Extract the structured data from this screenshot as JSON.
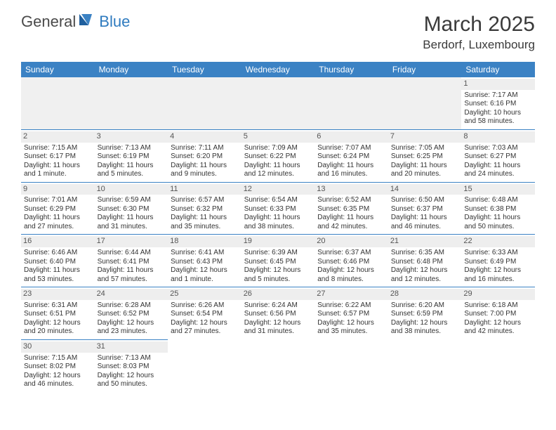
{
  "logo": {
    "text1": "General",
    "text2": "Blue"
  },
  "title": "March 2025",
  "location": "Berdorf, Luxembourg",
  "colors": {
    "header_bg": "#3b82c4",
    "header_fg": "#ffffff",
    "daynum_bg": "#eeeeee",
    "border": "#3b82c4",
    "logo_gray": "#4a4a4a",
    "logo_blue": "#2f7bbf"
  },
  "day_headers": [
    "Sunday",
    "Monday",
    "Tuesday",
    "Wednesday",
    "Thursday",
    "Friday",
    "Saturday"
  ],
  "weeks": [
    [
      null,
      null,
      null,
      null,
      null,
      null,
      {
        "n": "1",
        "sr": "Sunrise: 7:17 AM",
        "ss": "Sunset: 6:16 PM",
        "d1": "Daylight: 10 hours",
        "d2": "and 58 minutes."
      }
    ],
    [
      {
        "n": "2",
        "sr": "Sunrise: 7:15 AM",
        "ss": "Sunset: 6:17 PM",
        "d1": "Daylight: 11 hours",
        "d2": "and 1 minute."
      },
      {
        "n": "3",
        "sr": "Sunrise: 7:13 AM",
        "ss": "Sunset: 6:19 PM",
        "d1": "Daylight: 11 hours",
        "d2": "and 5 minutes."
      },
      {
        "n": "4",
        "sr": "Sunrise: 7:11 AM",
        "ss": "Sunset: 6:20 PM",
        "d1": "Daylight: 11 hours",
        "d2": "and 9 minutes."
      },
      {
        "n": "5",
        "sr": "Sunrise: 7:09 AM",
        "ss": "Sunset: 6:22 PM",
        "d1": "Daylight: 11 hours",
        "d2": "and 12 minutes."
      },
      {
        "n": "6",
        "sr": "Sunrise: 7:07 AM",
        "ss": "Sunset: 6:24 PM",
        "d1": "Daylight: 11 hours",
        "d2": "and 16 minutes."
      },
      {
        "n": "7",
        "sr": "Sunrise: 7:05 AM",
        "ss": "Sunset: 6:25 PM",
        "d1": "Daylight: 11 hours",
        "d2": "and 20 minutes."
      },
      {
        "n": "8",
        "sr": "Sunrise: 7:03 AM",
        "ss": "Sunset: 6:27 PM",
        "d1": "Daylight: 11 hours",
        "d2": "and 24 minutes."
      }
    ],
    [
      {
        "n": "9",
        "sr": "Sunrise: 7:01 AM",
        "ss": "Sunset: 6:29 PM",
        "d1": "Daylight: 11 hours",
        "d2": "and 27 minutes."
      },
      {
        "n": "10",
        "sr": "Sunrise: 6:59 AM",
        "ss": "Sunset: 6:30 PM",
        "d1": "Daylight: 11 hours",
        "d2": "and 31 minutes."
      },
      {
        "n": "11",
        "sr": "Sunrise: 6:57 AM",
        "ss": "Sunset: 6:32 PM",
        "d1": "Daylight: 11 hours",
        "d2": "and 35 minutes."
      },
      {
        "n": "12",
        "sr": "Sunrise: 6:54 AM",
        "ss": "Sunset: 6:33 PM",
        "d1": "Daylight: 11 hours",
        "d2": "and 38 minutes."
      },
      {
        "n": "13",
        "sr": "Sunrise: 6:52 AM",
        "ss": "Sunset: 6:35 PM",
        "d1": "Daylight: 11 hours",
        "d2": "and 42 minutes."
      },
      {
        "n": "14",
        "sr": "Sunrise: 6:50 AM",
        "ss": "Sunset: 6:37 PM",
        "d1": "Daylight: 11 hours",
        "d2": "and 46 minutes."
      },
      {
        "n": "15",
        "sr": "Sunrise: 6:48 AM",
        "ss": "Sunset: 6:38 PM",
        "d1": "Daylight: 11 hours",
        "d2": "and 50 minutes."
      }
    ],
    [
      {
        "n": "16",
        "sr": "Sunrise: 6:46 AM",
        "ss": "Sunset: 6:40 PM",
        "d1": "Daylight: 11 hours",
        "d2": "and 53 minutes."
      },
      {
        "n": "17",
        "sr": "Sunrise: 6:44 AM",
        "ss": "Sunset: 6:41 PM",
        "d1": "Daylight: 11 hours",
        "d2": "and 57 minutes."
      },
      {
        "n": "18",
        "sr": "Sunrise: 6:41 AM",
        "ss": "Sunset: 6:43 PM",
        "d1": "Daylight: 12 hours",
        "d2": "and 1 minute."
      },
      {
        "n": "19",
        "sr": "Sunrise: 6:39 AM",
        "ss": "Sunset: 6:45 PM",
        "d1": "Daylight: 12 hours",
        "d2": "and 5 minutes."
      },
      {
        "n": "20",
        "sr": "Sunrise: 6:37 AM",
        "ss": "Sunset: 6:46 PM",
        "d1": "Daylight: 12 hours",
        "d2": "and 8 minutes."
      },
      {
        "n": "21",
        "sr": "Sunrise: 6:35 AM",
        "ss": "Sunset: 6:48 PM",
        "d1": "Daylight: 12 hours",
        "d2": "and 12 minutes."
      },
      {
        "n": "22",
        "sr": "Sunrise: 6:33 AM",
        "ss": "Sunset: 6:49 PM",
        "d1": "Daylight: 12 hours",
        "d2": "and 16 minutes."
      }
    ],
    [
      {
        "n": "23",
        "sr": "Sunrise: 6:31 AM",
        "ss": "Sunset: 6:51 PM",
        "d1": "Daylight: 12 hours",
        "d2": "and 20 minutes."
      },
      {
        "n": "24",
        "sr": "Sunrise: 6:28 AM",
        "ss": "Sunset: 6:52 PM",
        "d1": "Daylight: 12 hours",
        "d2": "and 23 minutes."
      },
      {
        "n": "25",
        "sr": "Sunrise: 6:26 AM",
        "ss": "Sunset: 6:54 PM",
        "d1": "Daylight: 12 hours",
        "d2": "and 27 minutes."
      },
      {
        "n": "26",
        "sr": "Sunrise: 6:24 AM",
        "ss": "Sunset: 6:56 PM",
        "d1": "Daylight: 12 hours",
        "d2": "and 31 minutes."
      },
      {
        "n": "27",
        "sr": "Sunrise: 6:22 AM",
        "ss": "Sunset: 6:57 PM",
        "d1": "Daylight: 12 hours",
        "d2": "and 35 minutes."
      },
      {
        "n": "28",
        "sr": "Sunrise: 6:20 AM",
        "ss": "Sunset: 6:59 PM",
        "d1": "Daylight: 12 hours",
        "d2": "and 38 minutes."
      },
      {
        "n": "29",
        "sr": "Sunrise: 6:18 AM",
        "ss": "Sunset: 7:00 PM",
        "d1": "Daylight: 12 hours",
        "d2": "and 42 minutes."
      }
    ],
    [
      {
        "n": "30",
        "sr": "Sunrise: 7:15 AM",
        "ss": "Sunset: 8:02 PM",
        "d1": "Daylight: 12 hours",
        "d2": "and 46 minutes."
      },
      {
        "n": "31",
        "sr": "Sunrise: 7:13 AM",
        "ss": "Sunset: 8:03 PM",
        "d1": "Daylight: 12 hours",
        "d2": "and 50 minutes."
      },
      null,
      null,
      null,
      null,
      null
    ]
  ]
}
